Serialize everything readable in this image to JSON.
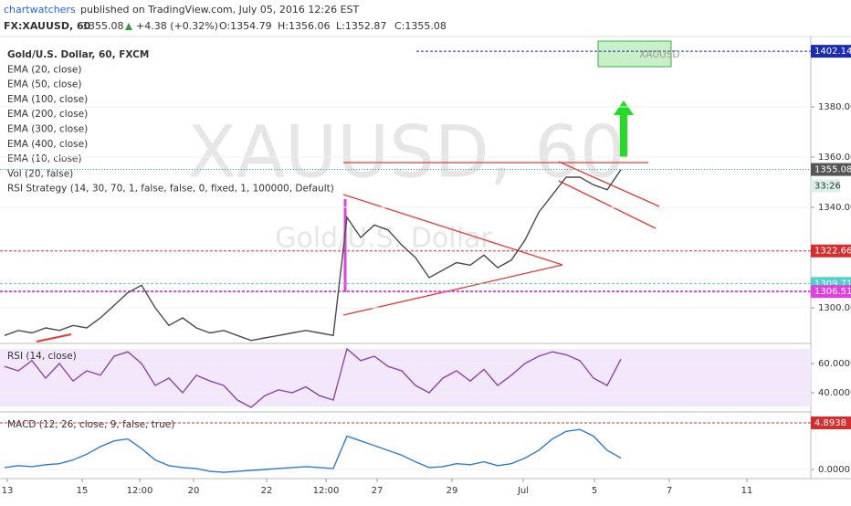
{
  "chart_data": {
    "type": "line",
    "author": "chartwatchers",
    "published": "published on TradingView.com, July 05, 2016 12:26 EST",
    "symbol": "FX:XAUUSD, 60",
    "last": "1355.08",
    "change": "+4.38 (+0.32%)",
    "ohlc": [
      "O:1354.79",
      "H:1356.06",
      "L:1352.87",
      "C:1355.08"
    ],
    "watermark": "XAUUSD, 60",
    "watermark_sub": "Gold/U.S. Dollar",
    "legend": [
      "Gold/U.S. Dollar, 60, FXCM",
      "EMA (20, close)",
      "EMA (50, close)",
      "EMA (100, close)",
      "EMA (200, close)",
      "EMA (300, close)",
      "EMA (400, close)",
      "EMA (10, close)",
      "Vol (20, false)",
      "RSI Strategy (14, 30, 70, 1, false, false, 0, fixed, 1, 100000, Default)"
    ],
    "x_labels": [
      "13",
      "15",
      "12:00",
      "20",
      "22",
      "12:00",
      "27",
      "29",
      "Jul",
      "5",
      "7",
      "11"
    ],
    "series": [
      {
        "name": "XAUUSD",
        "color": "#4a4a4a",
        "values": [
          1289,
          1291,
          1290,
          1292,
          1291,
          1293,
          1292,
          1296,
          1301,
          1306,
          1309,
          1300,
          1293,
          1296,
          1292,
          1290,
          1291,
          1289,
          1287,
          1288,
          1289,
          1290,
          1291,
          1290,
          1289,
          1336,
          1328,
          1333,
          1331,
          1325,
          1320,
          1312,
          1315,
          1318,
          1317,
          1321,
          1316,
          1319,
          1327,
          1338,
          1345,
          1352,
          1352,
          1349,
          1347,
          1355
        ]
      }
    ],
    "ylim": [
      1286.2,
      1408
    ],
    "yticks": [
      {
        "value": 1300,
        "label": "1300.00"
      },
      {
        "value": 1340,
        "label": "1340.00"
      },
      {
        "value": 1360,
        "label": "1360.00"
      },
      {
        "value": 1380,
        "label": "1380.00"
      }
    ],
    "price_levels": [
      {
        "value": 1402.14,
        "color": "#1a2bb5"
      },
      {
        "value": 1322.66,
        "color": "#d32f2f"
      },
      {
        "value": 1309.71,
        "color": "#4dd0c8"
      },
      {
        "value": 1306.51,
        "color": "#e040e0"
      }
    ],
    "last_label": {
      "value": 1355.08,
      "label": "1355.08"
    },
    "countdown": "33:26",
    "rsi": {
      "title": "RSI (14, close)",
      "color": "#8e44ad",
      "values": [
        58,
        55,
        62,
        50,
        60,
        48,
        55,
        52,
        65,
        68,
        60,
        45,
        50,
        40,
        52,
        48,
        45,
        35,
        30,
        38,
        42,
        40,
        44,
        38,
        35,
        70,
        62,
        65,
        58,
        55,
        45,
        40,
        50,
        55,
        48,
        56,
        45,
        52,
        60,
        65,
        68,
        66,
        62,
        50,
        45,
        63
      ],
      "ylim": [
        27.5,
        72.5
      ],
      "yticks": [
        {
          "value": 40,
          "label": "40.0000"
        },
        {
          "value": 60,
          "label": "60.0000"
        }
      ]
    },
    "macd": {
      "title": "MACD (12, 26, close, 9, false, true)",
      "color": "#2b7bd6",
      "values": [
        0.2,
        0.4,
        0.3,
        0.5,
        0.6,
        1.0,
        1.6,
        2.4,
        3.0,
        3.2,
        2.2,
        1.0,
        0.4,
        0.2,
        0.1,
        -0.2,
        -0.3,
        -0.2,
        -0.1,
        0.0,
        0.1,
        0.2,
        0.3,
        0.2,
        0.1,
        3.5,
        3.0,
        2.5,
        2.0,
        1.5,
        0.8,
        0.2,
        0.3,
        0.6,
        0.5,
        0.8,
        0.4,
        0.6,
        1.2,
        2.0,
        3.2,
        4.0,
        4.2,
        3.5,
        2.0,
        1.2
      ],
      "ylim": [
        -0.77,
        5.95
      ],
      "yticks": [
        {
          "value": 0,
          "label": "0.0000"
        }
      ],
      "level": {
        "value": 4.8938,
        "label": "4.8938",
        "color": "#d32f2f"
      }
    }
  }
}
